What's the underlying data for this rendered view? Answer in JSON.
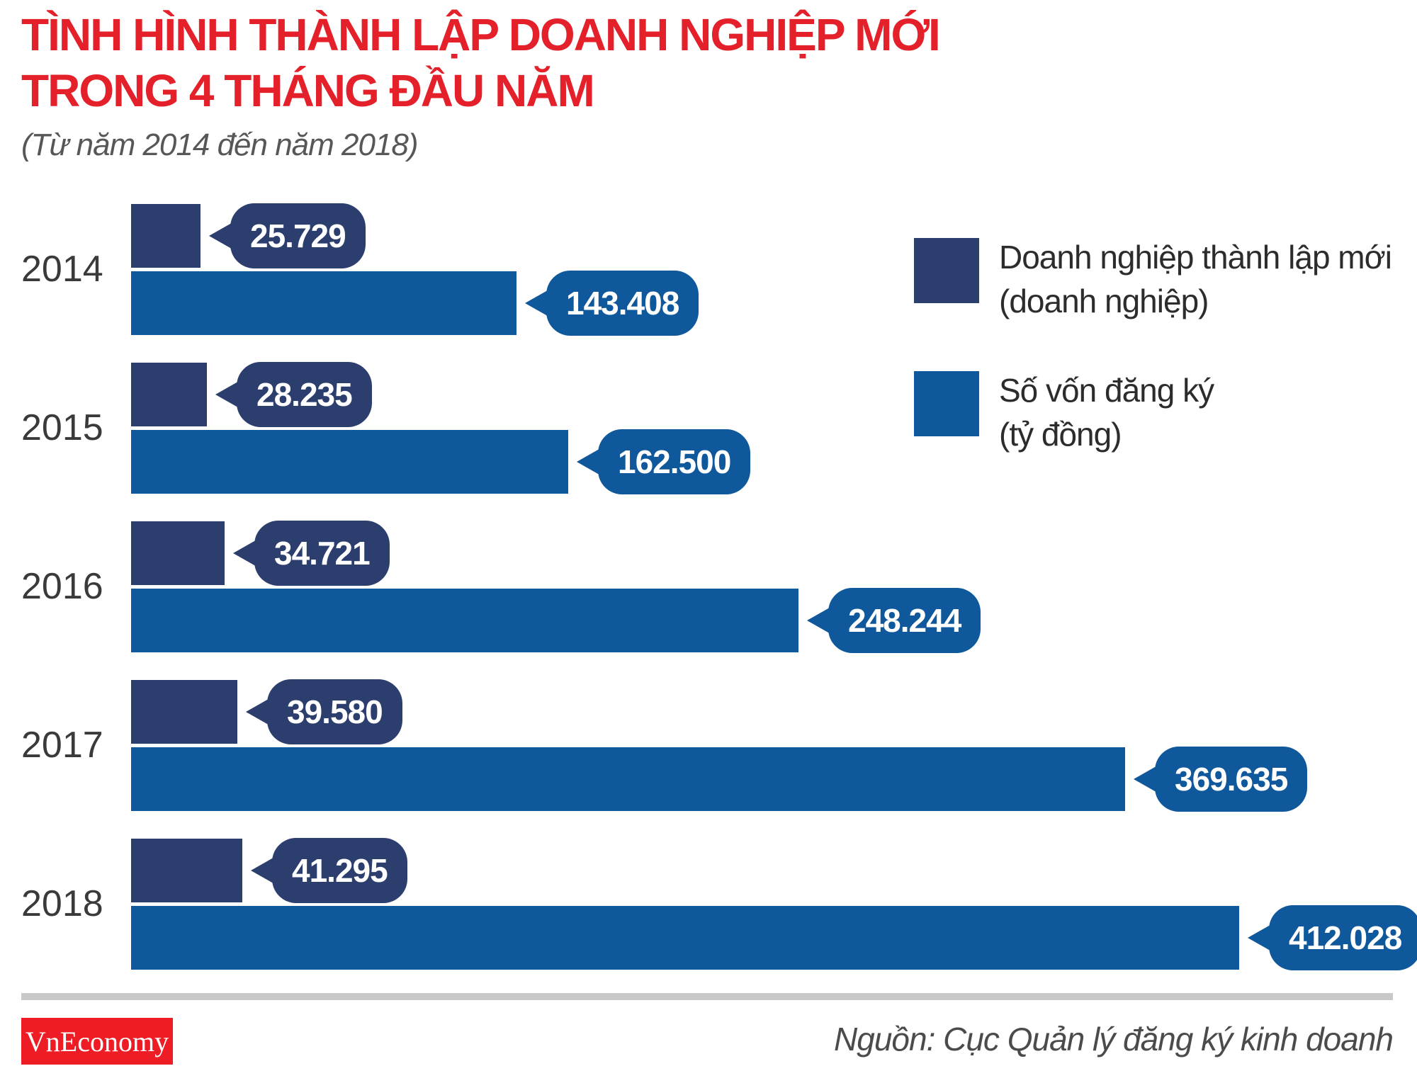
{
  "title": {
    "line1": "TÌNH HÌNH THÀNH LẬP DOANH NGHIỆP MỚI",
    "line2": "TRONG 4 THÁNG ĐẦU NĂM",
    "subtitle": "(Từ năm 2014 đến năm 2018)"
  },
  "legend": [
    {
      "line1": "Doanh nghiệp thành lập mới",
      "line2": "(doanh nghiệp)",
      "color": "#2B3E6E"
    },
    {
      "line1": "Số vốn đăng ký",
      "line2": "(tỷ đồng)",
      "color": "#0F589B"
    }
  ],
  "chart_data": {
    "type": "bar",
    "orientation": "horizontal",
    "title": "Tình hình thành lập doanh nghiệp mới trong 4 tháng đầu năm (2014-2018)",
    "categories": [
      "2014",
      "2015",
      "2016",
      "2017",
      "2018"
    ],
    "series": [
      {
        "key": "companies",
        "name": "Doanh nghiệp thành lập mới (doanh nghiệp)",
        "color": "#2B3E6E",
        "values": [
          25729,
          28235,
          34721,
          39580,
          41295
        ],
        "labels": [
          "25.729",
          "28.235",
          "34.721",
          "39.580",
          "41.295"
        ]
      },
      {
        "key": "capital",
        "name": "Số vốn đăng ký (tỷ đồng)",
        "color": "#0F589B",
        "values": [
          143408,
          162500,
          248244,
          369635,
          412028
        ],
        "labels": [
          "143.408",
          "162.500",
          "248.244",
          "369.635",
          "412.028"
        ]
      }
    ],
    "xlim": [
      0,
      412028
    ],
    "grid": false,
    "legend_position": "top-right",
    "value_label_style": "speech-bubble"
  },
  "colors": {
    "title_red": "#E4202A",
    "logo_red": "#EE1C25",
    "navy": "#2B3E6E",
    "blue": "#0F589B",
    "divider_gray": "#C9C9C9"
  },
  "footer": {
    "logo_text": "VnEconomy",
    "source": "Nguồn: Cục Quản lý đăng ký kinh doanh"
  }
}
